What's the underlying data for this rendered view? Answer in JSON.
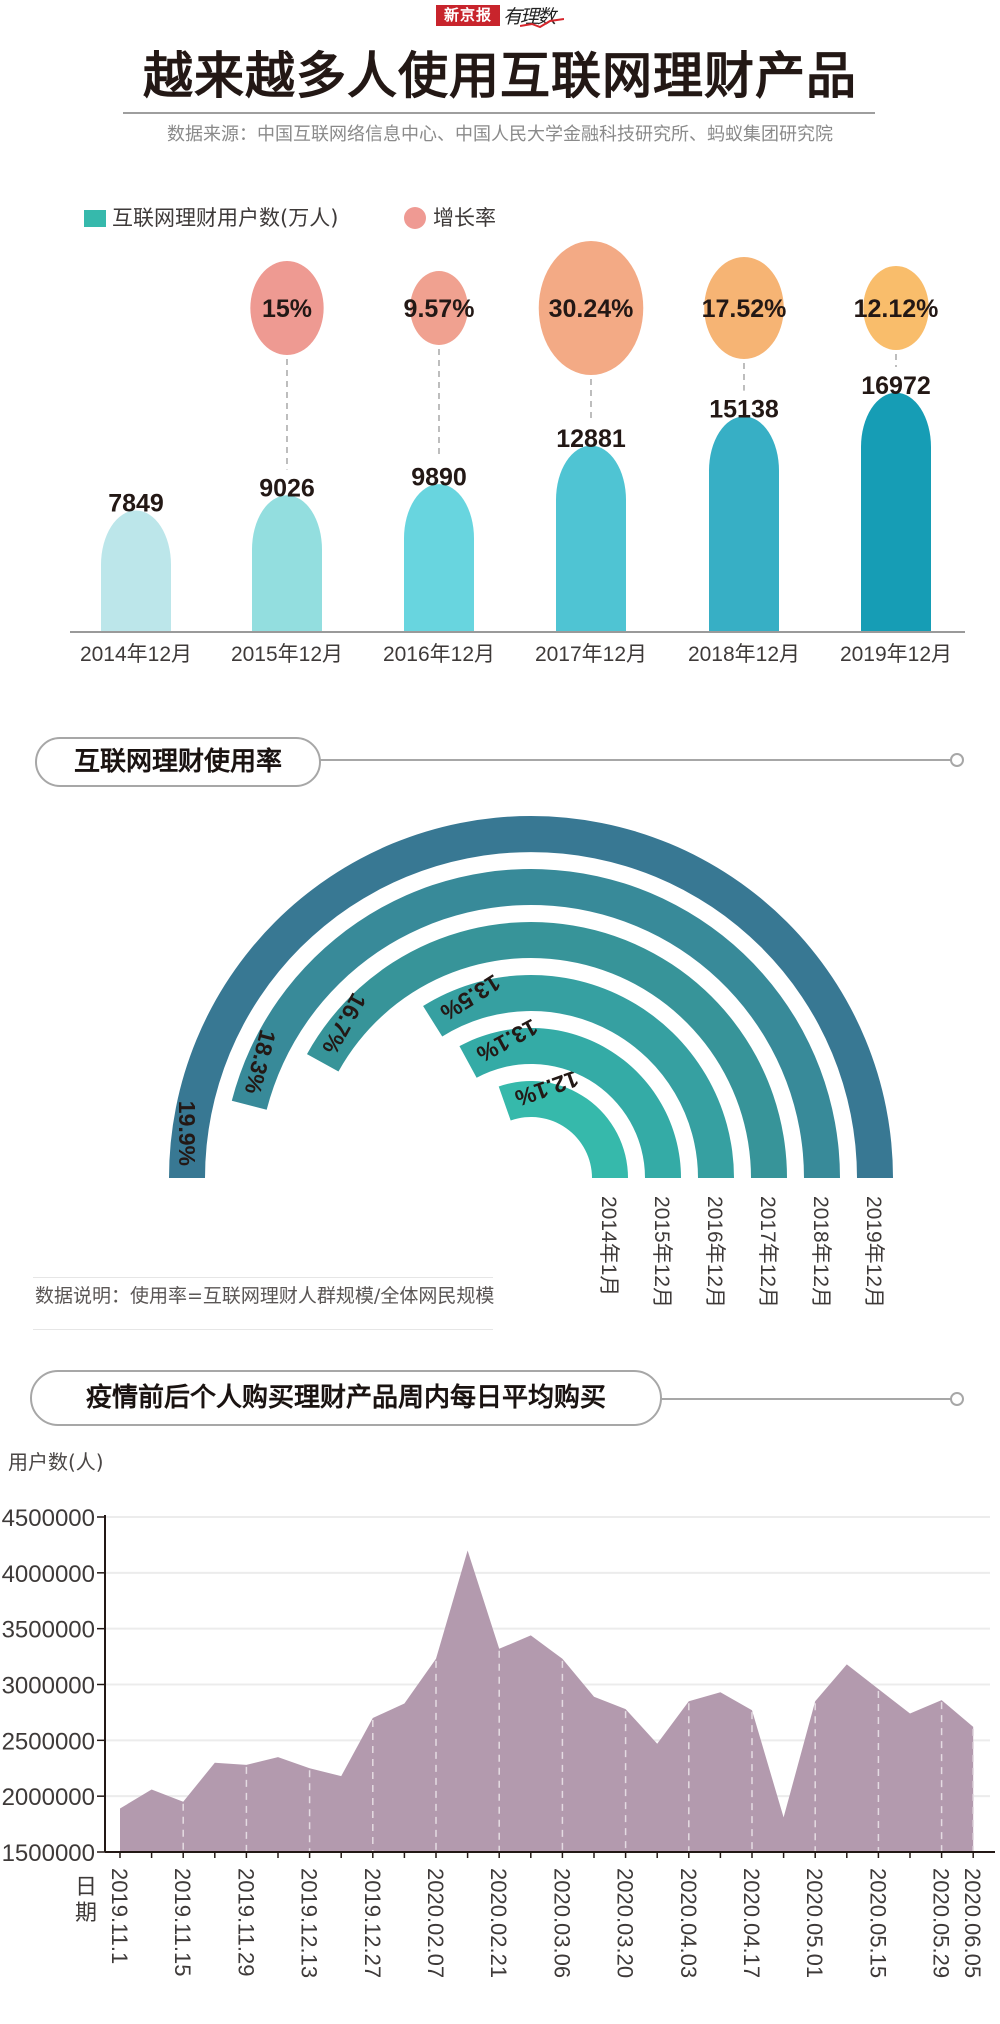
{
  "header": {
    "logo_text": "新京报",
    "logo_script": "有理数",
    "title": "越来越多人使用互联网理财产品",
    "source": "数据来源：中国互联网络信息中心、中国人民大学金融科技研究所、蚂蚁集团研究院"
  },
  "legend": {
    "users_label": "互联网理财用户数(万人)",
    "growth_label": "增长率",
    "users_color": "#36b9ac",
    "growth_color": "#ef9a93"
  },
  "sections": {
    "usage_rate_title": "互联网理财使用率",
    "usage_note": "数据说明：使用率=互联网理财人群规模/全体网民规模",
    "purchase_title": "疫情前后个人购买理财产品周内每日平均购买",
    "purchase_ylabel": "用户数(人)",
    "purchase_xlabel": "日期"
  },
  "chart_data": [
    {
      "type": "bar",
      "title": "互联网理财用户数及增长率",
      "categories": [
        "2014年12月",
        "2015年12月",
        "2016年12月",
        "2017年12月",
        "2018年12月",
        "2019年12月"
      ],
      "series": [
        {
          "name": "互联网理财用户数(万人)",
          "values": [
            7849,
            9026,
            9890,
            12881,
            15138,
            16972
          ],
          "colors": [
            "#bce6ea",
            "#93dedf",
            "#68d5df",
            "#4fc4d3",
            "#37afc5",
            "#169db5"
          ]
        },
        {
          "name": "增长率",
          "values": [
            null,
            "15%",
            "9.57%",
            "30.24%",
            "17.52%",
            "12.12%"
          ],
          "numeric": [
            null,
            15,
            9.57,
            30.24,
            17.52,
            12.12
          ],
          "colors": [
            null,
            "#ee9a92",
            "#f0a190",
            "#f3aa85",
            "#f6b474",
            "#f9bd6b"
          ],
          "radii": [
            0,
            47,
            37,
            67,
            51,
            42
          ]
        }
      ],
      "legend_position": "top-left",
      "grid": false
    },
    {
      "type": "bar",
      "subtype": "radial-arc",
      "title": "互联网理财使用率",
      "categories": [
        "2014年1月",
        "2015年12月",
        "2016年12月",
        "2017年12月",
        "2018年12月",
        "2019年12月"
      ],
      "values": [
        12.1,
        13.1,
        13.5,
        16.7,
        18.3,
        19.9
      ],
      "labels": [
        "12.1%",
        "13.1%",
        "13.5%",
        "16.7%",
        "18.3%",
        "19.9%"
      ],
      "colors": [
        "#36b9ab",
        "#34aba6",
        "#36a0a1",
        "#379499",
        "#388a99",
        "#387893"
      ],
      "note": "数据说明：使用率=互联网理财人群规模/全体网民规模"
    },
    {
      "type": "area",
      "title": "疫情前后个人购买理财产品周内每日平均购买",
      "ylabel": "用户数(人)",
      "xlabel": "日期",
      "ylim": [
        1500000,
        4500000
      ],
      "yticks": [
        "4500000",
        "4000000",
        "3500000",
        "3000000",
        "2500000",
        "2000000",
        "1500000"
      ],
      "xtick_labels": [
        "2019.11.1",
        "2019.11.15",
        "2019.11.29",
        "2019.12.13",
        "2019.12.27",
        "2020.02.07",
        "2020.02.21",
        "2020.03.06",
        "2020.03.20",
        "2020.04.03",
        "2020.04.17",
        "2020.05.01",
        "2020.05.15",
        "2020.05.29",
        "2020.06.05"
      ],
      "xtick_indices": [
        0,
        2,
        4,
        6,
        8,
        10,
        12,
        14,
        16,
        18,
        20,
        22,
        24,
        26,
        27
      ],
      "values": [
        1890000,
        2060000,
        1950000,
        2300000,
        2280000,
        2350000,
        2250000,
        2180000,
        2700000,
        2830000,
        3230000,
        4200000,
        3320000,
        3440000,
        3230000,
        2890000,
        2780000,
        2470000,
        2850000,
        2930000,
        2770000,
        1810000,
        2850000,
        3180000,
        2960000,
        2740000,
        2860000,
        2620000
      ],
      "color": "#b39aae",
      "grid": true
    }
  ]
}
